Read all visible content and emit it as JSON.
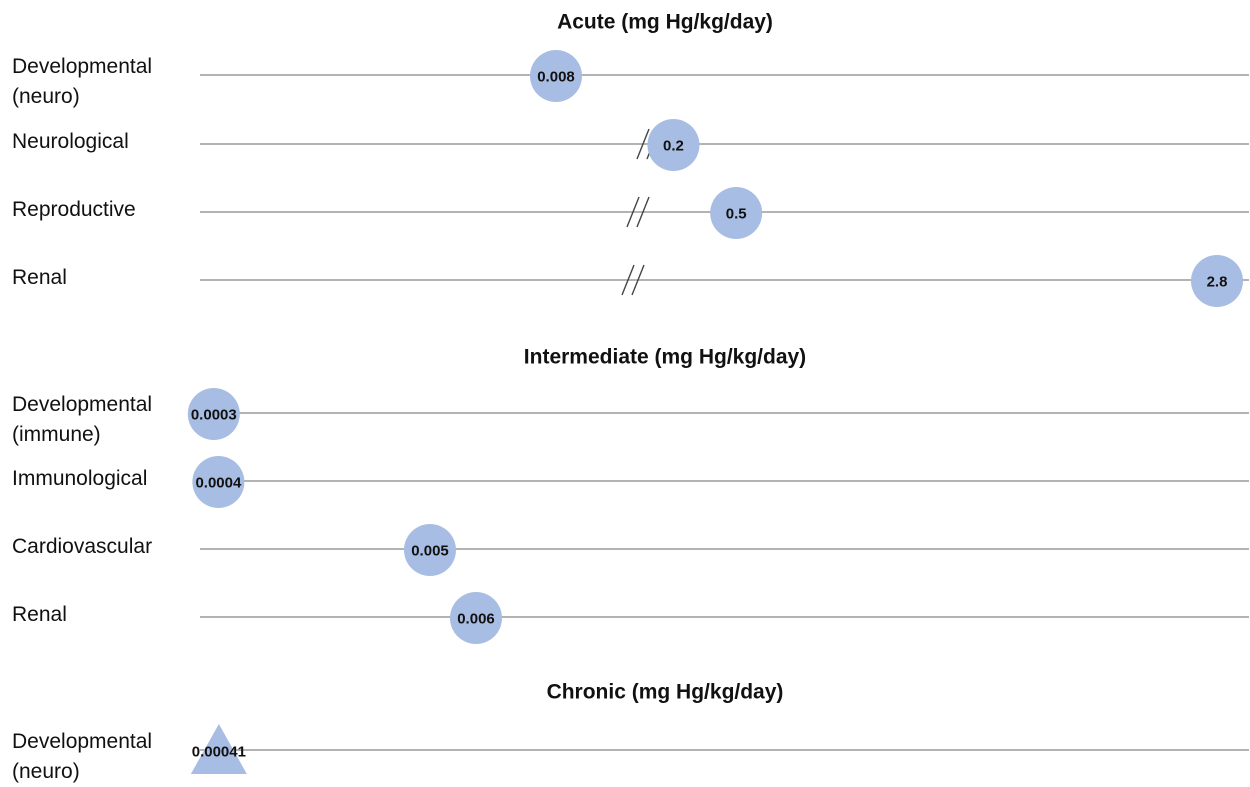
{
  "chart_data": {
    "type": "scatter",
    "units": "mg Hg/kg/day",
    "sections": [
      {
        "title": "Acute (mg Hg/kg/day)",
        "rows": [
          {
            "label": [
              "Developmental",
              "(neuro)"
            ],
            "value": 0.008,
            "value_label": "0.008",
            "marker": "circle",
            "axis_break": false
          },
          {
            "label": [
              "Neurological"
            ],
            "value": 0.2,
            "value_label": "0.2",
            "marker": "circle",
            "axis_break": true
          },
          {
            "label": [
              "Reproductive"
            ],
            "value": 0.5,
            "value_label": "0.5",
            "marker": "circle",
            "axis_break": true
          },
          {
            "label": [
              "Renal"
            ],
            "value": 2.8,
            "value_label": "2.8",
            "marker": "circle",
            "axis_break": true
          }
        ]
      },
      {
        "title": "Intermediate (mg Hg/kg/day)",
        "rows": [
          {
            "label": [
              "Developmental",
              "(immune)"
            ],
            "value": 0.0003,
            "value_label": "0.0003",
            "marker": "circle",
            "axis_break": false
          },
          {
            "label": [
              "Immunological"
            ],
            "value": 0.0004,
            "value_label": "0.0004",
            "marker": "circle",
            "axis_break": false
          },
          {
            "label": [
              "Cardiovascular"
            ],
            "value": 0.005,
            "value_label": "0.005",
            "marker": "circle",
            "axis_break": false
          },
          {
            "label": [
              "Renal"
            ],
            "value": 0.006,
            "value_label": "0.006",
            "marker": "circle",
            "axis_break": false
          }
        ]
      },
      {
        "title": "Chronic (mg Hg/kg/day)",
        "rows": [
          {
            "label": [
              "Developmental",
              "(neuro)"
            ],
            "value": 0.00041,
            "value_label": "0.00041",
            "marker": "triangle",
            "axis_break": false
          }
        ]
      }
    ],
    "marker_color": "#a7bde3",
    "line_color": "#9a9a9a",
    "grid": false,
    "legend": "none"
  }
}
